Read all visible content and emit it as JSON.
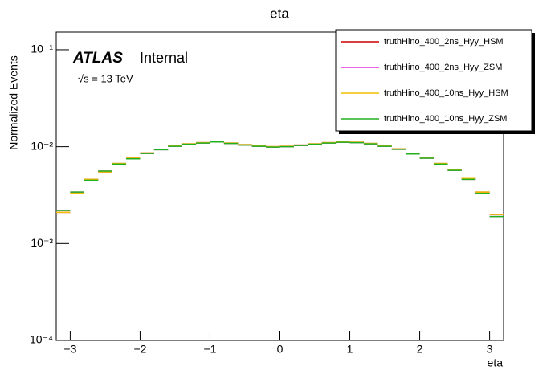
{
  "chart_data": {
    "type": "histogram",
    "title": "eta",
    "xlabel": "eta",
    "ylabel": "Normalized Events",
    "annotations": [
      "ATLAS",
      "Internal",
      "√s = 13 TeV"
    ],
    "log_y": true,
    "legend": "upper right",
    "bins": [
      -3.2,
      -3.0,
      -2.8,
      -2.6,
      -2.4,
      -2.2,
      -2.0,
      -1.8,
      -1.6,
      -1.4,
      -1.2,
      -1.0,
      -0.8,
      -0.6,
      -0.4,
      -0.2,
      0,
      0.2,
      0.4,
      0.6,
      0.8,
      1.0,
      1.2,
      1.4,
      1.6,
      1.8,
      2.0,
      2.2,
      2.4,
      2.6,
      2.8,
      3.0,
      3.2
    ],
    "xlim": [
      -3.2,
      3.2
    ],
    "ylim": [
      0.0001,
      0.152
    ],
    "xticks": [
      {
        "value": -3,
        "label": "−3"
      },
      {
        "value": -2,
        "label": "−2"
      },
      {
        "value": -1,
        "label": "−1"
      },
      0,
      1,
      2,
      3
    ],
    "yticks": [
      {
        "value": 0.0001,
        "label": "10⁻⁴"
      },
      {
        "value": 0.001,
        "label": "10⁻³"
      },
      {
        "value": 0.01,
        "label": "10⁻²"
      },
      {
        "value": 0.1,
        "label": "10⁻¹"
      }
    ],
    "series": [
      {
        "name": "truthHino_400_2ns_Hyy_HSM",
        "color": "#cc0000",
        "values": [
          0.0021,
          0.0033,
          0.0046,
          0.0055,
          0.0067,
          0.0076,
          0.0086,
          0.0094,
          0.0102,
          0.0107,
          0.011,
          0.0113,
          0.0109,
          0.0105,
          0.0102,
          0.01,
          0.0101,
          0.0104,
          0.0107,
          0.011,
          0.0112,
          0.0111,
          0.0108,
          0.0102,
          0.0095,
          0.0085,
          0.0077,
          0.0067,
          0.0058,
          0.0047,
          0.0034,
          0.002
        ]
      },
      {
        "name": "truthHino_400_2ns_Hyy_ZSM",
        "color": "#e030e0",
        "values": [
          0.0022,
          0.0034,
          0.0045,
          0.0056,
          0.0066,
          0.0075,
          0.0085,
          0.0093,
          0.0101,
          0.0106,
          0.0109,
          0.0112,
          0.0108,
          0.0104,
          0.0101,
          0.0099,
          0.01,
          0.0103,
          0.0106,
          0.0109,
          0.0111,
          0.011,
          0.0107,
          0.0101,
          0.0094,
          0.0084,
          0.0076,
          0.0066,
          0.0057,
          0.0046,
          0.0033,
          0.0019
        ]
      },
      {
        "name": "truthHino_400_10ns_Hyy_HSM",
        "color": "#f0c000",
        "values": [
          0.0021,
          0.0033,
          0.0046,
          0.0055,
          0.0067,
          0.0076,
          0.0086,
          0.0094,
          0.0102,
          0.0107,
          0.011,
          0.0113,
          0.0109,
          0.0105,
          0.0102,
          0.01,
          0.0101,
          0.0104,
          0.0107,
          0.011,
          0.0112,
          0.0111,
          0.0108,
          0.0102,
          0.0095,
          0.0085,
          0.0077,
          0.0067,
          0.0058,
          0.0047,
          0.0034,
          0.002
        ]
      },
      {
        "name": "truthHino_400_10ns_Hyy_ZSM",
        "color": "#20b020",
        "values": [
          0.0022,
          0.0034,
          0.0045,
          0.0056,
          0.0066,
          0.0075,
          0.0085,
          0.0093,
          0.0101,
          0.0106,
          0.0109,
          0.0112,
          0.0108,
          0.0104,
          0.0101,
          0.0099,
          0.01,
          0.0103,
          0.0106,
          0.0109,
          0.0111,
          0.011,
          0.0107,
          0.0101,
          0.0094,
          0.0084,
          0.0076,
          0.0066,
          0.0057,
          0.0046,
          0.0033,
          0.0019
        ]
      }
    ]
  }
}
